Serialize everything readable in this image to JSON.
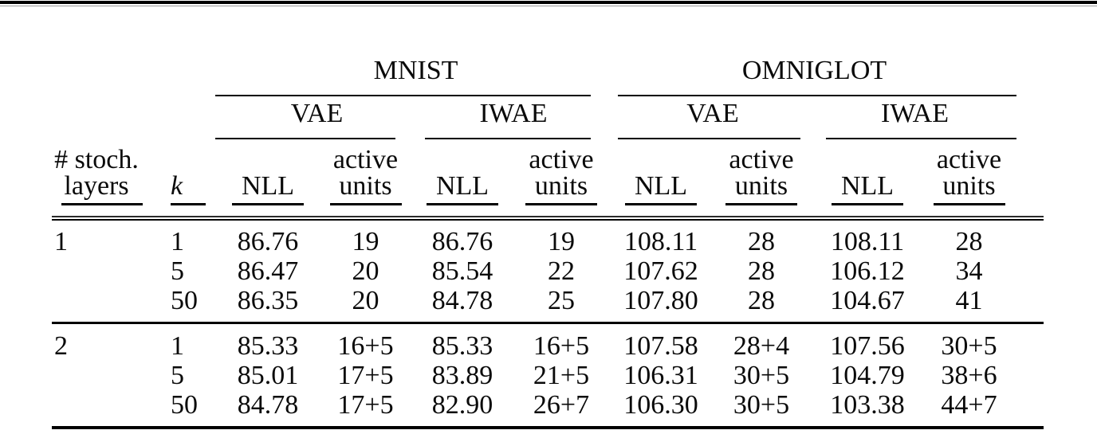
{
  "header": {
    "groups": [
      "MNIST",
      "OMNIGLOT"
    ],
    "subgroups": [
      "VAE",
      "IWAE",
      "VAE",
      "IWAE"
    ],
    "stoch": {
      "line1": "# stoch.",
      "line2": "layers"
    },
    "k": "k",
    "metrics": [
      {
        "lines": [
          "NLL"
        ]
      },
      {
        "lines": [
          "active",
          "units"
        ]
      },
      {
        "lines": [
          "NLL"
        ]
      },
      {
        "lines": [
          "active",
          "units"
        ]
      },
      {
        "lines": [
          "NLL"
        ]
      },
      {
        "lines": [
          "active",
          "units"
        ]
      },
      {
        "lines": [
          "NLL"
        ]
      },
      {
        "lines": [
          "active",
          "units"
        ]
      }
    ]
  },
  "body": {
    "groups": [
      {
        "label": "1",
        "rows": [
          {
            "k": "1",
            "values": [
              "86.76",
              "19",
              "86.76",
              "19",
              "108.11",
              "28",
              "108.11",
              "28"
            ]
          },
          {
            "k": "5",
            "values": [
              "86.47",
              "20",
              "85.54",
              "22",
              "107.62",
              "28",
              "106.12",
              "34"
            ]
          },
          {
            "k": "50",
            "values": [
              "86.35",
              "20",
              "84.78",
              "25",
              "107.80",
              "28",
              "104.67",
              "41"
            ]
          }
        ]
      },
      {
        "label": "2",
        "rows": [
          {
            "k": "1",
            "values": [
              "85.33",
              "16+5",
              "85.33",
              "16+5",
              "107.58",
              "28+4",
              "107.56",
              "30+5"
            ]
          },
          {
            "k": "5",
            "values": [
              "85.01",
              "17+5",
              "83.89",
              "21+5",
              "106.31",
              "30+5",
              "104.79",
              "38+6"
            ]
          },
          {
            "k": "50",
            "values": [
              "84.78",
              "17+5",
              "82.90",
              "26+7",
              "106.30",
              "30+5",
              "103.38",
              "44+7"
            ]
          }
        ]
      }
    ]
  }
}
